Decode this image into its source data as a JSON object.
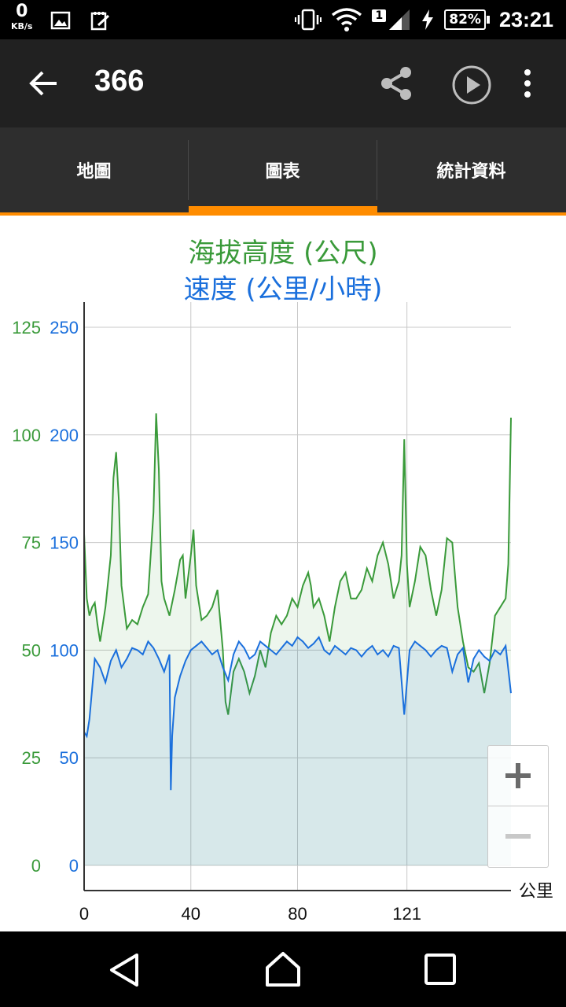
{
  "status_bar": {
    "net_speed_value": "0",
    "net_speed_unit": "KB/s",
    "sim_number": "1",
    "battery": "82%",
    "time": "23:21"
  },
  "app_bar": {
    "title": "366",
    "icons": [
      "back-arrow-icon",
      "share-icon",
      "play-icon",
      "more-vert-icon"
    ]
  },
  "tabs": [
    {
      "label": "地圖",
      "selected": false
    },
    {
      "label": "圖表",
      "selected": true
    },
    {
      "label": "統計資料",
      "selected": false
    }
  ],
  "colors": {
    "accent": "#ff8c00",
    "elevation": "#3a9a3a",
    "speed": "#1a6fdc"
  },
  "chart_data": {
    "type": "area",
    "title_elevation": "海拔高度 (公尺)",
    "title_speed": "速度 (公里/小時)",
    "x_unit_label": "公里",
    "x_ticks": [
      "0",
      "40",
      "80",
      "121"
    ],
    "x_tick_values": [
      0,
      40,
      80,
      121
    ],
    "xlim": [
      0,
      160
    ],
    "y_elevation_ticks": [
      "0",
      "25",
      "50",
      "75",
      "100",
      "125"
    ],
    "y_speed_ticks": [
      "0",
      "50",
      "100",
      "150",
      "200",
      "250"
    ],
    "ylim_elevation": [
      0,
      125
    ],
    "ylim_speed": [
      0,
      250
    ],
    "grid": true,
    "series": [
      {
        "name": "海拔高度 (公尺)",
        "axis": "left",
        "x": [
          0,
          1,
          2,
          3,
          4,
          5,
          6,
          8,
          10,
          11,
          12,
          13,
          14,
          16,
          18,
          20,
          22,
          24,
          26,
          27,
          28,
          29,
          30,
          32,
          34,
          36,
          37,
          38,
          40,
          41,
          42,
          44,
          46,
          48,
          50,
          52,
          53,
          54,
          56,
          58,
          60,
          62,
          64,
          66,
          68,
          70,
          72,
          74,
          76,
          78,
          80,
          82,
          84,
          85,
          86,
          88,
          90,
          92,
          94,
          96,
          98,
          100,
          102,
          104,
          106,
          108,
          110,
          112,
          114,
          116,
          118,
          119,
          120,
          121,
          122,
          124,
          126,
          128,
          130,
          132,
          134,
          136,
          138,
          140,
          142,
          144,
          146,
          148,
          150,
          152,
          154,
          156,
          158,
          159,
          160
        ],
        "y": [
          77,
          62,
          58,
          60,
          61,
          56,
          52,
          60,
          72,
          90,
          96,
          85,
          65,
          55,
          57,
          56,
          60,
          63,
          82,
          105,
          92,
          66,
          62,
          58,
          64,
          71,
          72,
          62,
          72,
          78,
          65,
          57,
          58,
          60,
          64,
          50,
          38,
          35,
          45,
          48,
          45,
          40,
          44,
          50,
          46,
          54,
          58,
          56,
          58,
          62,
          60,
          65,
          68,
          65,
          60,
          62,
          58,
          52,
          60,
          66,
          68,
          62,
          62,
          64,
          69,
          66,
          72,
          75,
          70,
          62,
          66,
          72,
          99,
          70,
          60,
          66,
          74,
          72,
          64,
          58,
          64,
          76,
          75,
          60,
          52,
          46,
          45,
          47,
          40,
          47,
          58,
          60,
          62,
          70,
          104
        ]
      },
      {
        "name": "速度 (公里/小時)",
        "axis": "right",
        "x": [
          0,
          1,
          2,
          3,
          4,
          6,
          8,
          10,
          12,
          14,
          16,
          18,
          20,
          22,
          24,
          26,
          28,
          30,
          32,
          32.5,
          33,
          34,
          36,
          38,
          40,
          42,
          44,
          46,
          48,
          50,
          52,
          54,
          56,
          58,
          60,
          62,
          64,
          66,
          68,
          70,
          72,
          74,
          76,
          78,
          80,
          82,
          84,
          86,
          88,
          90,
          92,
          94,
          96,
          98,
          100,
          102,
          104,
          106,
          108,
          110,
          112,
          114,
          116,
          118,
          120,
          122,
          124,
          126,
          128,
          130,
          132,
          134,
          136,
          138,
          140,
          142,
          144,
          146,
          148,
          150,
          152,
          154,
          156,
          158,
          160
        ],
        "y": [
          62,
          60,
          68,
          82,
          96,
          92,
          85,
          95,
          100,
          92,
          96,
          101,
          100,
          98,
          104,
          101,
          96,
          90,
          98,
          35,
          60,
          78,
          88,
          95,
          100,
          102,
          104,
          101,
          98,
          100,
          92,
          86,
          98,
          104,
          101,
          96,
          98,
          104,
          102,
          100,
          98,
          101,
          104,
          102,
          106,
          104,
          101,
          103,
          106,
          100,
          98,
          102,
          100,
          98,
          101,
          100,
          97,
          100,
          102,
          98,
          100,
          97,
          102,
          101,
          70,
          100,
          104,
          102,
          100,
          97,
          100,
          102,
          101,
          90,
          98,
          101,
          85,
          96,
          100,
          97,
          95,
          100,
          98,
          102,
          80
        ]
      }
    ]
  }
}
